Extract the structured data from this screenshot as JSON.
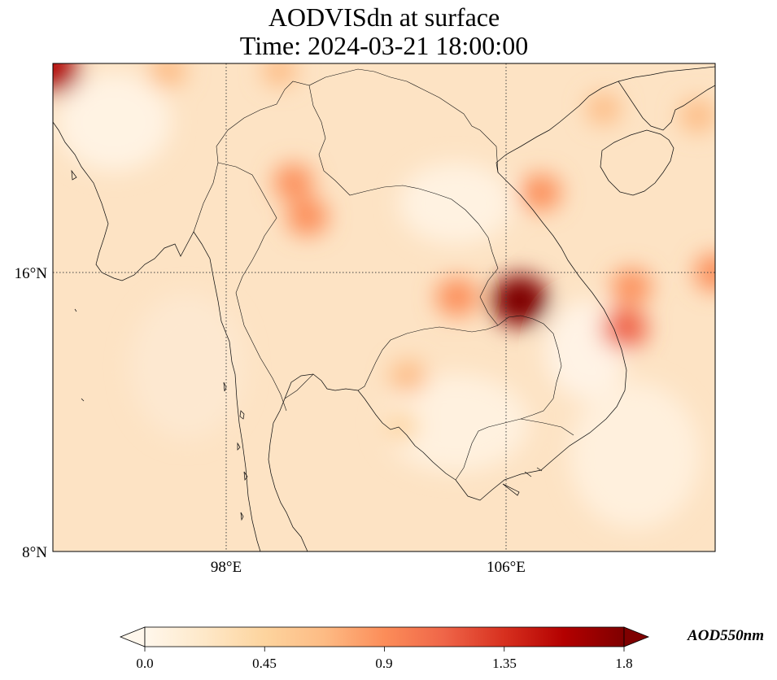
{
  "title": {
    "line1": "AODVISdn at surface",
    "line2": "Time: 2024-03-21 18:00:00"
  },
  "map": {
    "projection": "PlateCarree",
    "extent": {
      "lon": [
        93,
        112
      ],
      "lat": [
        8,
        22
      ]
    },
    "gridlines": {
      "style": "dotted",
      "lons": [
        98,
        106
      ],
      "lats": [
        8,
        16
      ]
    },
    "xticks": [
      {
        "value": 98,
        "label": "98°E"
      },
      {
        "value": 106,
        "label": "106°E"
      }
    ],
    "yticks": [
      {
        "value": 16,
        "label": "16°N"
      },
      {
        "value": 8,
        "label": "8°N"
      }
    ],
    "features": [
      "coastlines",
      "country borders"
    ],
    "field_hotspots": [
      {
        "lon": 106.4,
        "lat": 15.2,
        "value": 1.8
      },
      {
        "lon": 104.6,
        "lat": 15.3,
        "value": 1.0
      },
      {
        "lon": 100.3,
        "lat": 17.6,
        "value": 0.95
      },
      {
        "lon": 99.9,
        "lat": 18.6,
        "value": 0.85
      },
      {
        "lon": 107.0,
        "lat": 18.3,
        "value": 0.9
      },
      {
        "lon": 109.4,
        "lat": 14.4,
        "value": 1.2
      },
      {
        "lon": 109.6,
        "lat": 15.6,
        "value": 0.85
      },
      {
        "lon": 112.0,
        "lat": 16.0,
        "value": 0.95
      },
      {
        "lon": 93.05,
        "lat": 21.8,
        "value": 1.5
      },
      {
        "lon": 96.3,
        "lat": 21.8,
        "value": 0.7
      },
      {
        "lon": 99.5,
        "lat": 21.8,
        "value": 0.6
      },
      {
        "lon": 103.2,
        "lat": 13.0,
        "value": 0.7
      },
      {
        "lon": 103.0,
        "lat": 11.6,
        "value": 0.55
      },
      {
        "lon": 108.8,
        "lat": 20.7,
        "value": 0.6
      },
      {
        "lon": 111.5,
        "lat": 20.5,
        "value": 0.7
      }
    ]
  },
  "colorbar": {
    "cmap": "OrRd",
    "colors": [
      "#fff7ec",
      "#fee8c8",
      "#fdd49e",
      "#fdbb84",
      "#fc8d59",
      "#ef6548",
      "#d7301f",
      "#b30000",
      "#7f0000"
    ],
    "range": [
      0.0,
      1.8
    ],
    "extend": "both",
    "ticks": [
      "0.0",
      "0.45",
      "0.9",
      "1.35",
      "1.8"
    ],
    "tick_values": [
      0.0,
      0.45,
      0.9,
      1.35,
      1.8
    ],
    "units": "AOD550nm"
  }
}
